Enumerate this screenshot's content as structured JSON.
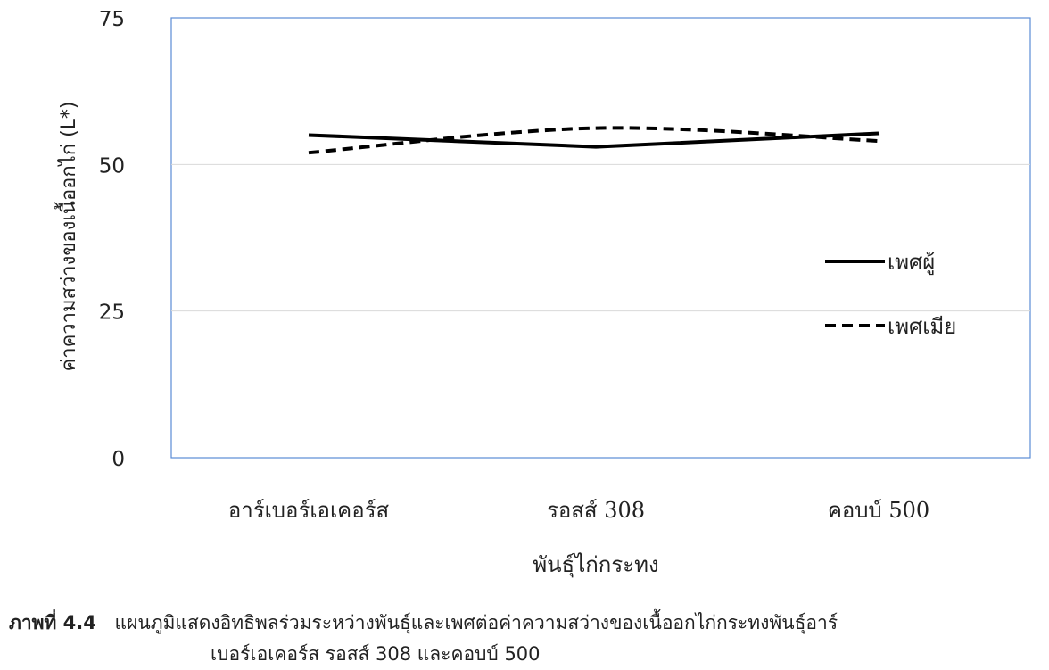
{
  "chart_data": {
    "type": "line",
    "xlabel": "พันธุ์ไก่กระทง",
    "ylabel": "ค่าความสว่างของเนื้ออกไก่ (L*)",
    "categories": [
      "อาร์เบอร์เอเคอร์ส",
      "รอสส์ 308",
      "คอบบ์ 500"
    ],
    "ylim": [
      0,
      75
    ],
    "yticks": [
      0,
      25,
      50,
      75
    ],
    "grid": true,
    "legend_position": "right",
    "series": [
      {
        "name": "เพศผู้",
        "values": [
          55.0,
          53.0,
          55.3
        ],
        "style": "solid",
        "color": "#000000"
      },
      {
        "name": "เพศเมีย",
        "values": [
          52.0,
          56.2,
          54.0
        ],
        "style": "dashed",
        "color": "#000000"
      }
    ],
    "colors": {
      "grid": "#d9d9d9",
      "frame": "#5b8bd6",
      "text": "#222222"
    }
  },
  "caption": {
    "label": "ภาพที่ 4.4",
    "line1": "แผนภูมิแสดงอิทธิพลร่วมระหว่างพันธุ์และเพศต่อค่าความสว่างของเนื้ออกไก่กระทงพันธุ์อาร์",
    "line2": "เบอร์เอเคอร์ส รอสส์ 308 และคอบบ์ 500"
  }
}
